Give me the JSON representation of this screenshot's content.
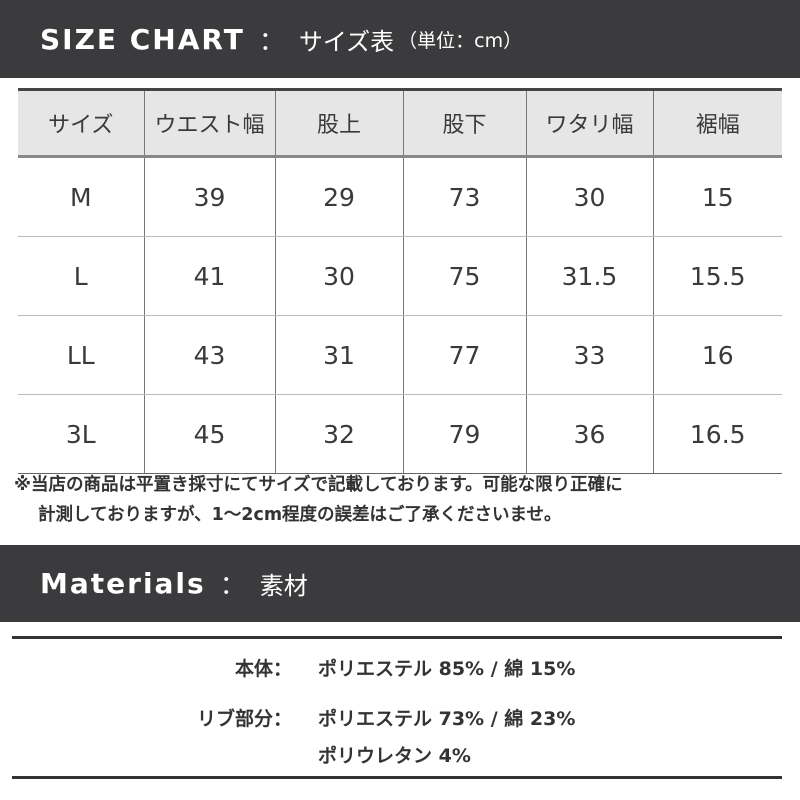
{
  "size_chart": {
    "title_en": "SIZE CHART",
    "separator": "：",
    "title_jp": "サイズ表",
    "unit": "（単位：cm）",
    "headers": [
      "サイズ",
      "ウエスト幅",
      "股上",
      "股下",
      "ワタリ幅",
      "裾幅"
    ],
    "rows": [
      [
        "M",
        "39",
        "29",
        "73",
        "30",
        "15"
      ],
      [
        "L",
        "41",
        "30",
        "75",
        "31.5",
        "15.5"
      ],
      [
        "LL",
        "43",
        "31",
        "77",
        "33",
        "16"
      ],
      [
        "3L",
        "45",
        "32",
        "79",
        "36",
        "16.5"
      ]
    ],
    "note_line1": "※当店の商品は平置き採寸にてサイズで記載しております。可能な限り正確に",
    "note_line2": "計測しておりますが、1～2cm程度の誤差はご了承くださいませ。"
  },
  "materials": {
    "title_en": "Materials",
    "separator": "：",
    "title_jp": "素材",
    "items": [
      {
        "label": "本体：",
        "lines": [
          "ポリエステル 85% / 綿 15%"
        ]
      },
      {
        "label": "リブ部分：",
        "lines": [
          "ポリエステル 73% / 綿 23%",
          "ポリウレタン 4%"
        ]
      }
    ]
  },
  "colors": {
    "bar": "#3b3b3d",
    "header_row": "#e6e6e6"
  }
}
